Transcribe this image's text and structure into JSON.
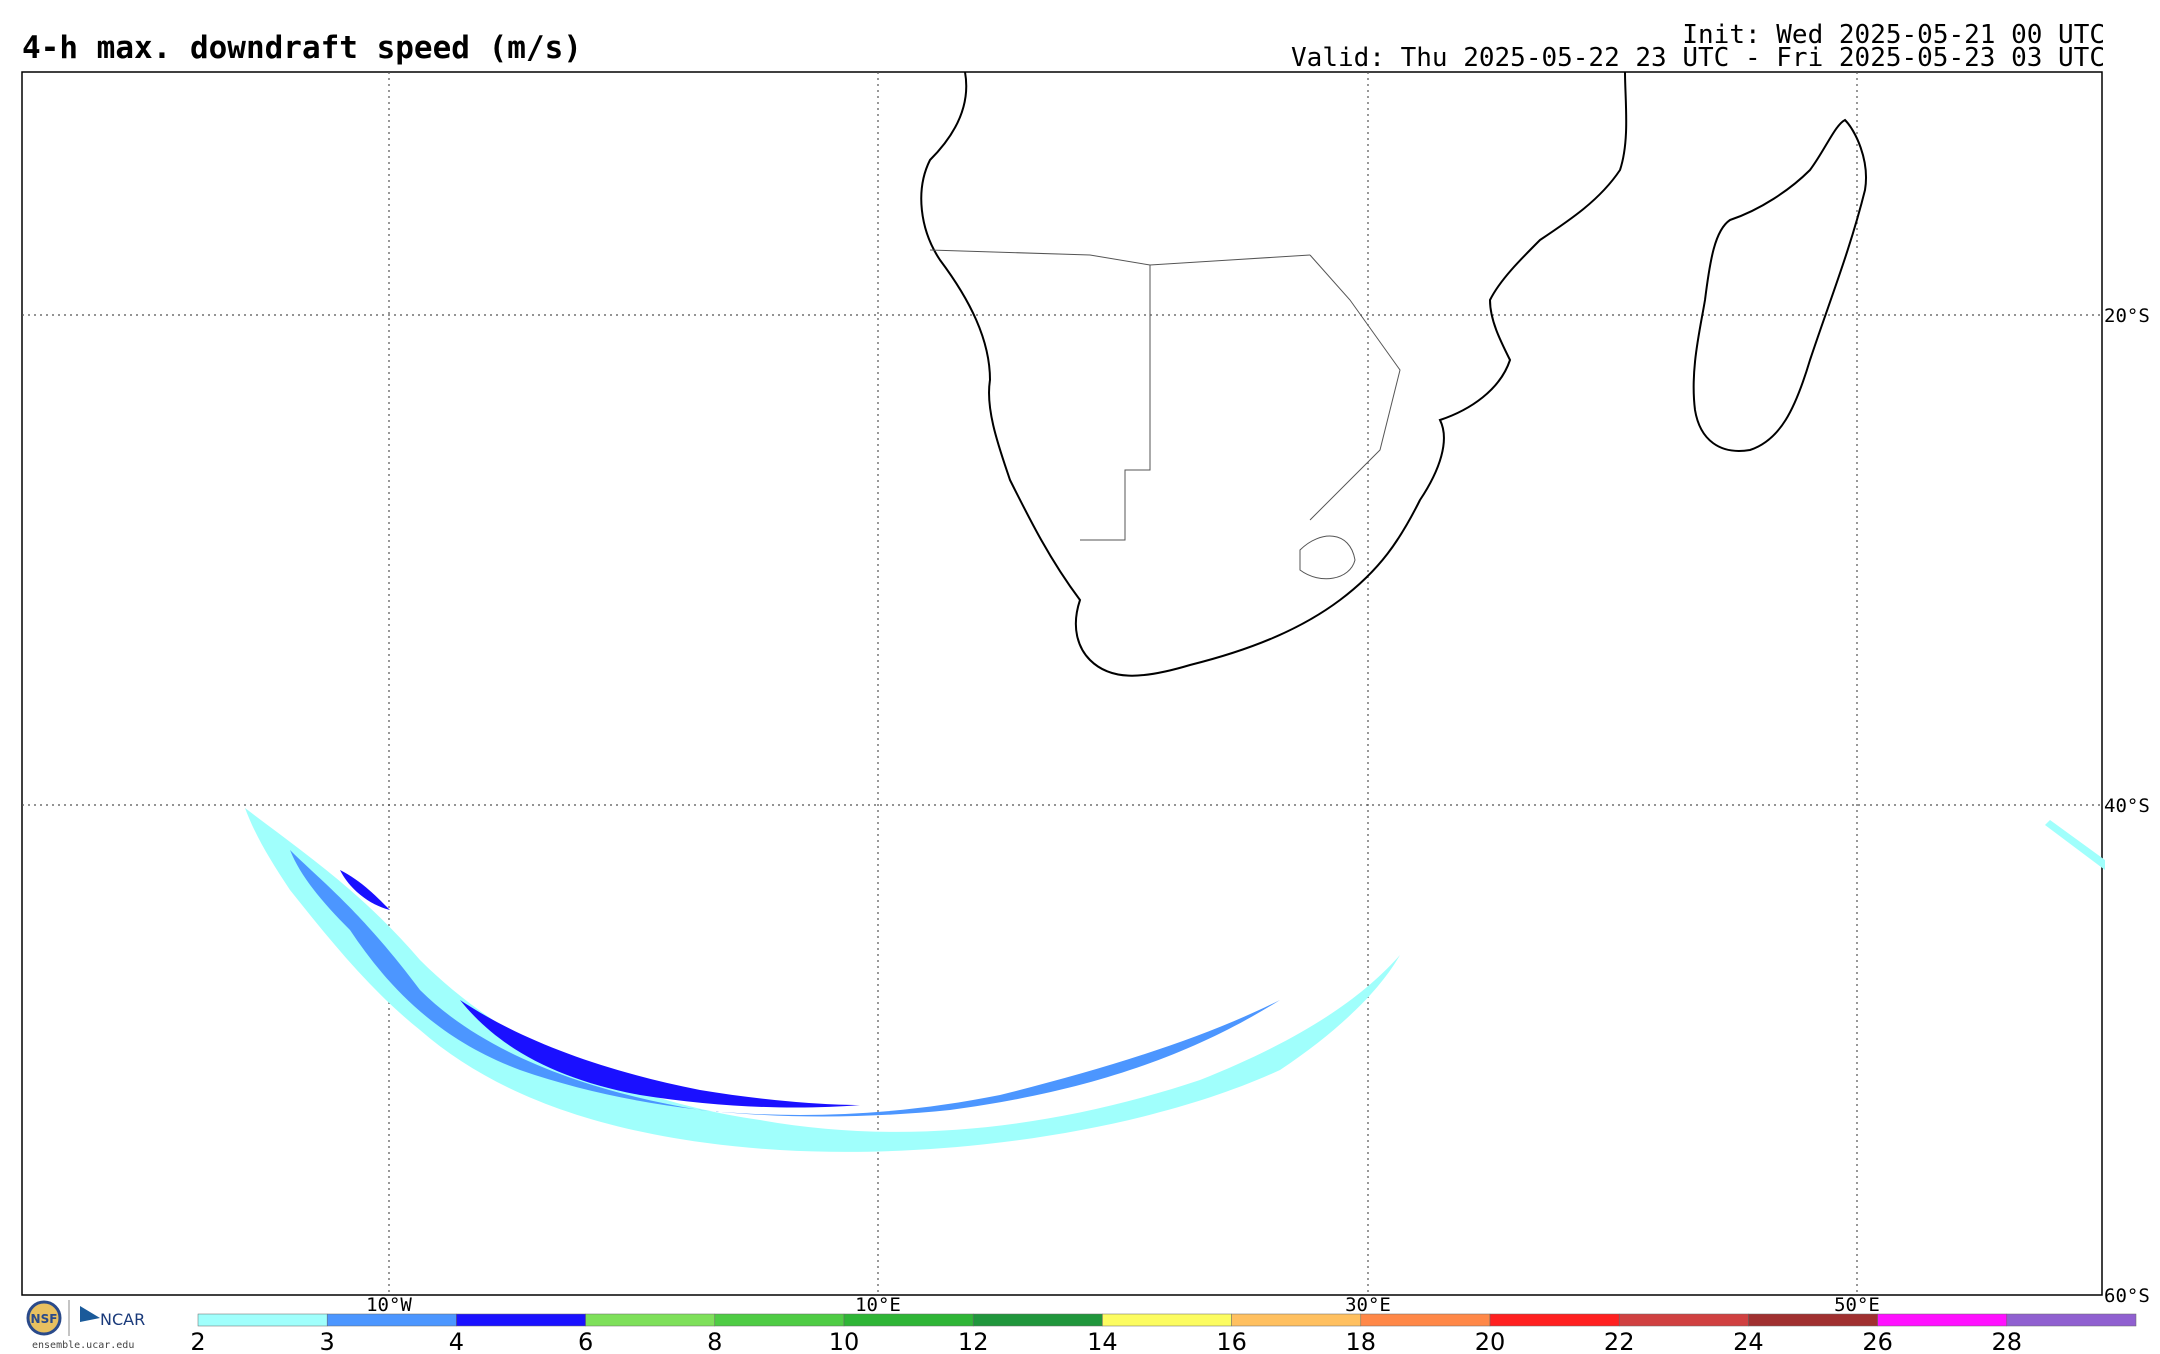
{
  "title": "4-h max. downdraft speed (m/s)",
  "init": "Init: Wed 2025-05-21 00 UTC",
  "valid": "Valid: Thu 2025-05-22 23 UTC - Fri 2025-05-23 03 UTC",
  "lon_labels": [
    "10°W",
    "10°E",
    "30°E",
    "50°E"
  ],
  "lat_labels": [
    "20°S",
    "40°S",
    "60°S"
  ],
  "colorbar": {
    "ticks": [
      "2",
      "3",
      "4",
      "6",
      "8",
      "10",
      "12",
      "14",
      "16",
      "18",
      "20",
      "22",
      "24",
      "26",
      "28"
    ],
    "colors": [
      "#a0fffc",
      "#4c96ff",
      "#1a10ff",
      "#7ee05a",
      "#4fcc44",
      "#2fb536",
      "#20963c",
      "#fcfc60",
      "#ffc060",
      "#ff8848",
      "#ff2020",
      "#d04040",
      "#a03030",
      "#ff10ff",
      "#9060d0"
    ]
  },
  "logos": {
    "nsf": "NSF",
    "ncar": "NCAR",
    "site": "ensemble.ucar.edu"
  },
  "field_colors": {
    "light": "#a0fffc",
    "mid": "#4c96ff",
    "dark": "#1a10ff"
  }
}
